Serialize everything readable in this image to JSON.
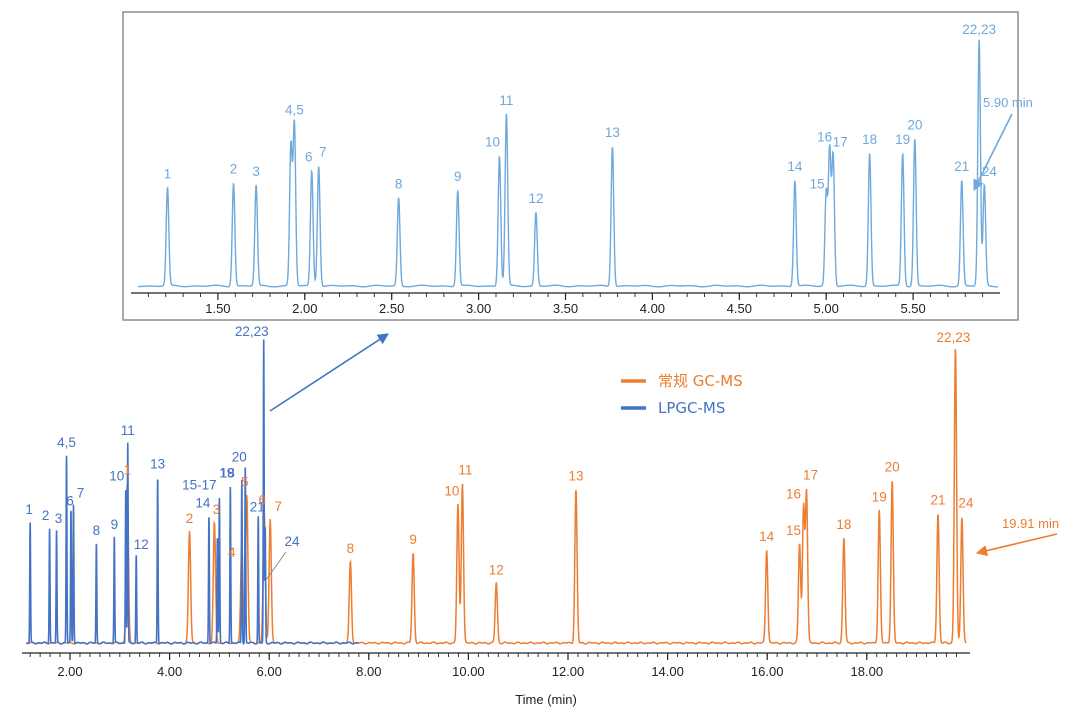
{
  "chart_data": [
    {
      "name": "inset",
      "type": "line",
      "title": "",
      "xlabel": "",
      "ylabel": "",
      "xlim": [
        1.0,
        6.0
      ],
      "ylim": [
        0,
        100
      ],
      "xticks": [
        "1.50",
        "2.00",
        "2.50",
        "3.00",
        "3.50",
        "4.00",
        "4.50",
        "5.00",
        "5.50"
      ],
      "grid": false,
      "series": [
        {
          "name": "LPGC-MS",
          "color": "#6fa8dc",
          "peaks": [
            {
              "label": "1",
              "x": 1.21,
              "h": 40
            },
            {
              "label": "2",
              "x": 1.59,
              "h": 42
            },
            {
              "label": "3",
              "x": 1.72,
              "h": 41
            },
            {
              "label": "",
              "x": 1.92,
              "h": 57
            },
            {
              "label": "4,5",
              "x": 1.94,
              "h": 66
            },
            {
              "label": "6",
              "x": 2.04,
              "h": 47
            },
            {
              "label": "7",
              "x": 2.08,
              "h": 49
            },
            {
              "label": "8",
              "x": 2.54,
              "h": 36
            },
            {
              "label": "9",
              "x": 2.88,
              "h": 39
            },
            {
              "label": "10",
              "x": 3.12,
              "h": 53
            },
            {
              "label": "11",
              "x": 3.16,
              "h": 70
            },
            {
              "label": "12",
              "x": 3.33,
              "h": 30
            },
            {
              "label": "13",
              "x": 3.77,
              "h": 57
            },
            {
              "label": "14",
              "x": 4.82,
              "h": 43
            },
            {
              "label": "15",
              "x": 5.0,
              "h": 38
            },
            {
              "label": "16",
              "x": 5.02,
              "h": 55
            },
            {
              "label": "17",
              "x": 5.04,
              "h": 53
            },
            {
              "label": "18",
              "x": 5.25,
              "h": 54
            },
            {
              "label": "19",
              "x": 5.44,
              "h": 54
            },
            {
              "label": "20",
              "x": 5.51,
              "h": 60
            },
            {
              "label": "21",
              "x": 5.78,
              "h": 43
            },
            {
              "label": "22,23",
              "x": 5.88,
              "h": 100
            },
            {
              "label": "24",
              "x": 5.91,
              "h": 41
            }
          ]
        }
      ],
      "annotations": [
        {
          "text": "5.90 min",
          "x": 5.91
        }
      ]
    },
    {
      "name": "main",
      "type": "line",
      "title": "",
      "xlabel": "Time (min)",
      "ylabel": "",
      "xlim": [
        1.0,
        20.0
      ],
      "ylim": [
        0,
        100
      ],
      "xticks": [
        "2.00",
        "4.00",
        "6.00",
        "8.00",
        "10.00",
        "12.00",
        "14.00",
        "16.00",
        "18.00"
      ],
      "grid": false,
      "legend": {
        "position": "top-center",
        "entries": [
          "常规 GC-MS",
          "LPGC-MS"
        ]
      },
      "series": [
        {
          "name": "常规 GC-MS",
          "color": "#ed7d31",
          "peaks": [
            {
              "label": "1",
              "x": 3.15,
              "h": 53
            },
            {
              "label": "2",
              "x": 4.4,
              "h": 37
            },
            {
              "label": "3",
              "x": 4.9,
              "h": 40
            },
            {
              "label": "4",
              "x": 5.45,
              "h": 33
            },
            {
              "label": "5",
              "x": 5.55,
              "h": 49
            },
            {
              "label": "6",
              "x": 5.9,
              "h": 43
            },
            {
              "label": "7",
              "x": 6.02,
              "h": 41
            },
            {
              "label": "8",
              "x": 7.63,
              "h": 27
            },
            {
              "label": "9",
              "x": 8.89,
              "h": 30
            },
            {
              "label": "10",
              "x": 9.79,
              "h": 46
            },
            {
              "label": "11",
              "x": 9.88,
              "h": 53
            },
            {
              "label": "12",
              "x": 10.56,
              "h": 20
            },
            {
              "label": "13",
              "x": 12.16,
              "h": 51
            },
            {
              "label": "14",
              "x": 15.99,
              "h": 31
            },
            {
              "label": "15",
              "x": 16.65,
              "h": 33
            },
            {
              "label": "16",
              "x": 16.73,
              "h": 45
            },
            {
              "label": "17",
              "x": 16.79,
              "h": 50
            },
            {
              "label": "18",
              "x": 17.54,
              "h": 35
            },
            {
              "label": "19",
              "x": 18.25,
              "h": 44
            },
            {
              "label": "20",
              "x": 18.51,
              "h": 54
            },
            {
              "label": "21",
              "x": 19.43,
              "h": 43
            },
            {
              "label": "22,23",
              "x": 19.78,
              "h": 98
            },
            {
              "label": "24",
              "x": 19.91,
              "h": 42
            }
          ]
        },
        {
          "name": "LPGC-MS",
          "color": "#4472c4",
          "peaks": [
            {
              "label": "1",
              "x": 1.2,
              "h": 40
            },
            {
              "label": "2",
              "x": 1.59,
              "h": 38
            },
            {
              "label": "3",
              "x": 1.73,
              "h": 37
            },
            {
              "label": "4,5",
              "x": 1.93,
              "h": 62
            },
            {
              "label": "6",
              "x": 2.02,
              "h": 44
            },
            {
              "label": "7",
              "x": 2.07,
              "h": 46
            },
            {
              "label": "8",
              "x": 2.53,
              "h": 33
            },
            {
              "label": "9",
              "x": 2.89,
              "h": 35
            },
            {
              "label": "10",
              "x": 3.12,
              "h": 51
            },
            {
              "label": "11",
              "x": 3.16,
              "h": 66
            },
            {
              "label": "12",
              "x": 3.33,
              "h": 29
            },
            {
              "label": "13",
              "x": 3.76,
              "h": 55
            },
            {
              "label": "14",
              "x": 4.79,
              "h": 42
            },
            {
              "label": "15-17",
              "x": 5.0,
              "h": 48
            },
            {
              "label": "",
              "x": 4.96,
              "h": 35
            },
            {
              "label": "18",
              "x": 5.22,
              "h": 52
            },
            {
              "label": "19",
              "x": 5.45,
              "h": 54
            },
            {
              "label": "20",
              "x": 5.52,
              "h": 58
            },
            {
              "label": "21",
              "x": 5.78,
              "h": 42
            },
            {
              "label": "22,23",
              "x": 5.89,
              "h": 100
            },
            {
              "label": "24",
              "x": 5.92,
              "h": 38
            }
          ]
        }
      ],
      "annotations": [
        {
          "text": "19.91 min",
          "x": 19.91
        }
      ]
    }
  ]
}
